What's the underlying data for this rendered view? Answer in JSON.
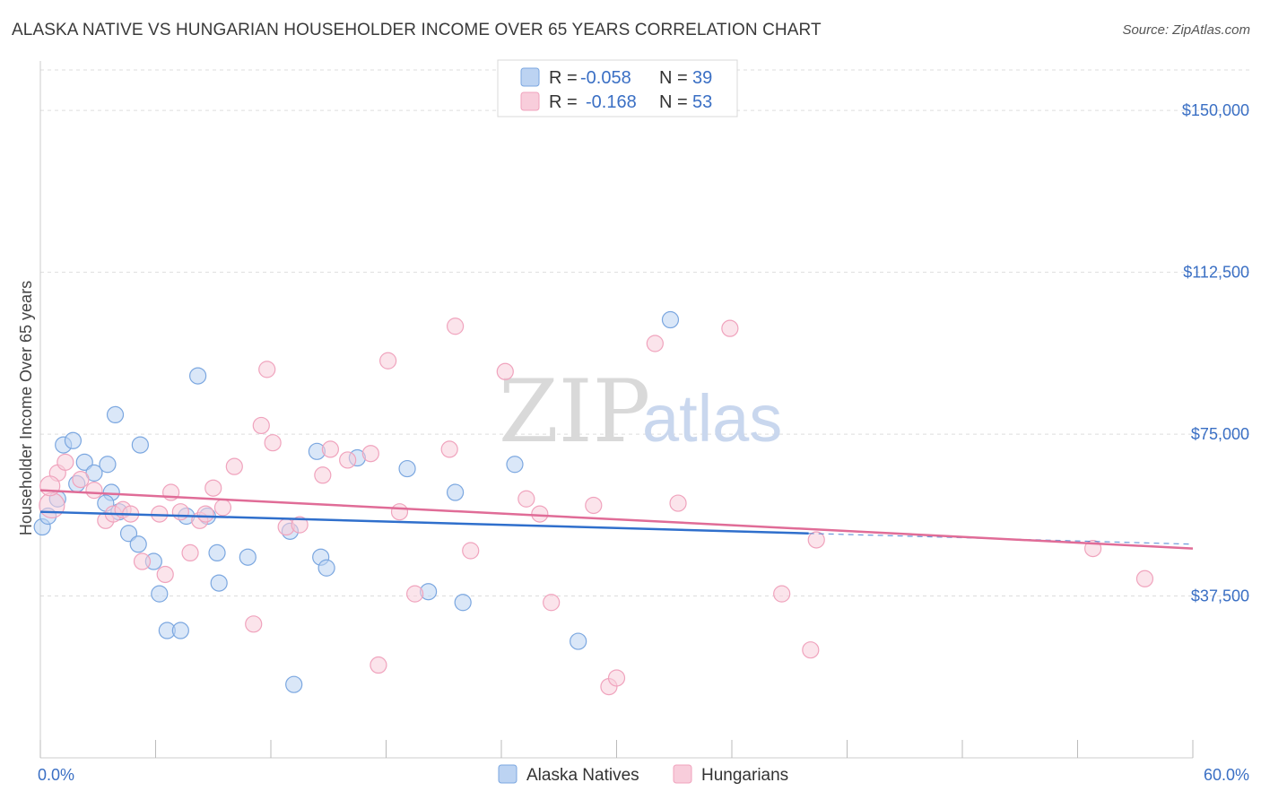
{
  "title": "ALASKA NATIVE VS HUNGARIAN HOUSEHOLDER INCOME OVER 65 YEARS CORRELATION CHART",
  "source": "Source: ZipAtlas.com",
  "watermark": {
    "zip": "ZIP",
    "atlas": "atlas"
  },
  "chart_data": {
    "type": "scatter",
    "xlabel": "",
    "ylabel": "Householder Income Over 65 years",
    "xlim": [
      0,
      60
    ],
    "ylim": [
      0,
      160000
    ],
    "x_tick_labels": [
      "0.0%",
      "60.0%"
    ],
    "y_ticks": [
      37500,
      75000,
      112500,
      150000
    ],
    "y_tick_labels": [
      "$37,500",
      "$75,000",
      "$112,500",
      "$150,000"
    ],
    "grid": true,
    "legend": {
      "placement": "top-center",
      "entries": [
        {
          "r_label": "R =",
          "r_value": "-0.058",
          "n_label": "N =",
          "n_value": "39"
        },
        {
          "r_label": "R =",
          "r_value": "-0.168",
          "n_label": "N =",
          "n_value": "53"
        }
      ]
    },
    "series": [
      {
        "name": "Alaska Natives",
        "color": "#7ba7e0",
        "fill": "#bcd3f2",
        "line_color": "#2f6fcc",
        "trend": {
          "x": [
            0,
            40
          ],
          "y": [
            57000,
            52000
          ]
        },
        "trend_dashed": {
          "x": [
            40,
            60
          ],
          "y": [
            52000,
            49500
          ]
        },
        "points": [
          [
            0.1,
            53500
          ],
          [
            0.4,
            56000
          ],
          [
            0.9,
            60000
          ],
          [
            1.2,
            72500
          ],
          [
            1.7,
            73500
          ],
          [
            1.9,
            63500
          ],
          [
            2.3,
            68500
          ],
          [
            2.8,
            66000
          ],
          [
            3.5,
            68000
          ],
          [
            3.7,
            61500
          ],
          [
            3.9,
            79500
          ],
          [
            3.4,
            59000
          ],
          [
            4.1,
            57000
          ],
          [
            4.6,
            52000
          ],
          [
            5.1,
            49500
          ],
          [
            5.2,
            72500
          ],
          [
            5.9,
            45500
          ],
          [
            6.2,
            38000
          ],
          [
            6.6,
            29500
          ],
          [
            7.3,
            29500
          ],
          [
            7.6,
            56000
          ],
          [
            8.2,
            88500
          ],
          [
            8.7,
            56000
          ],
          [
            9.2,
            47500
          ],
          [
            9.3,
            40500
          ],
          [
            10.8,
            46500
          ],
          [
            13.0,
            52500
          ],
          [
            13.2,
            17000
          ],
          [
            14.4,
            71000
          ],
          [
            14.6,
            46500
          ],
          [
            14.9,
            44000
          ],
          [
            16.5,
            69500
          ],
          [
            19.1,
            67000
          ],
          [
            20.2,
            38500
          ],
          [
            21.6,
            61500
          ],
          [
            22.0,
            36000
          ],
          [
            24.7,
            68000
          ],
          [
            28.0,
            27000
          ],
          [
            32.8,
            101500
          ]
        ]
      },
      {
        "name": "Hungarians",
        "color": "#f0a3bd",
        "fill": "#f8cddb",
        "line_color": "#e06c97",
        "trend": {
          "x": [
            0,
            60
          ],
          "y": [
            62000,
            48500
          ]
        },
        "points": [
          [
            0.6,
            58500
          ],
          [
            0.9,
            66000
          ],
          [
            1.3,
            68500
          ],
          [
            2.1,
            64500
          ],
          [
            2.8,
            62000
          ],
          [
            3.4,
            55000
          ],
          [
            3.8,
            56500
          ],
          [
            4.3,
            57500
          ],
          [
            4.7,
            56500
          ],
          [
            5.3,
            45500
          ],
          [
            6.2,
            56500
          ],
          [
            6.5,
            42500
          ],
          [
            6.8,
            61500
          ],
          [
            7.3,
            57000
          ],
          [
            7.8,
            47500
          ],
          [
            8.3,
            55000
          ],
          [
            8.6,
            56500
          ],
          [
            9.0,
            62500
          ],
          [
            9.5,
            58000
          ],
          [
            10.1,
            67500
          ],
          [
            11.1,
            31000
          ],
          [
            11.5,
            77000
          ],
          [
            11.8,
            90000
          ],
          [
            12.1,
            73000
          ],
          [
            12.8,
            53500
          ],
          [
            13.5,
            54000
          ],
          [
            14.7,
            65500
          ],
          [
            15.1,
            71500
          ],
          [
            16.0,
            69000
          ],
          [
            17.2,
            70500
          ],
          [
            17.6,
            21500
          ],
          [
            18.1,
            92000
          ],
          [
            18.7,
            57000
          ],
          [
            19.5,
            38000
          ],
          [
            21.3,
            71500
          ],
          [
            21.6,
            100000
          ],
          [
            22.4,
            48000
          ],
          [
            24.2,
            89500
          ],
          [
            25.3,
            60000
          ],
          [
            26.0,
            56500
          ],
          [
            26.6,
            36000
          ],
          [
            28.8,
            58500
          ],
          [
            29.6,
            16500
          ],
          [
            30.0,
            18500
          ],
          [
            32.0,
            96000
          ],
          [
            33.2,
            59000
          ],
          [
            35.9,
            99500
          ],
          [
            38.6,
            38000
          ],
          [
            40.1,
            25000
          ],
          [
            40.4,
            50500
          ],
          [
            54.8,
            48500
          ],
          [
            57.5,
            41500
          ],
          [
            0.5,
            63000
          ]
        ]
      }
    ]
  }
}
